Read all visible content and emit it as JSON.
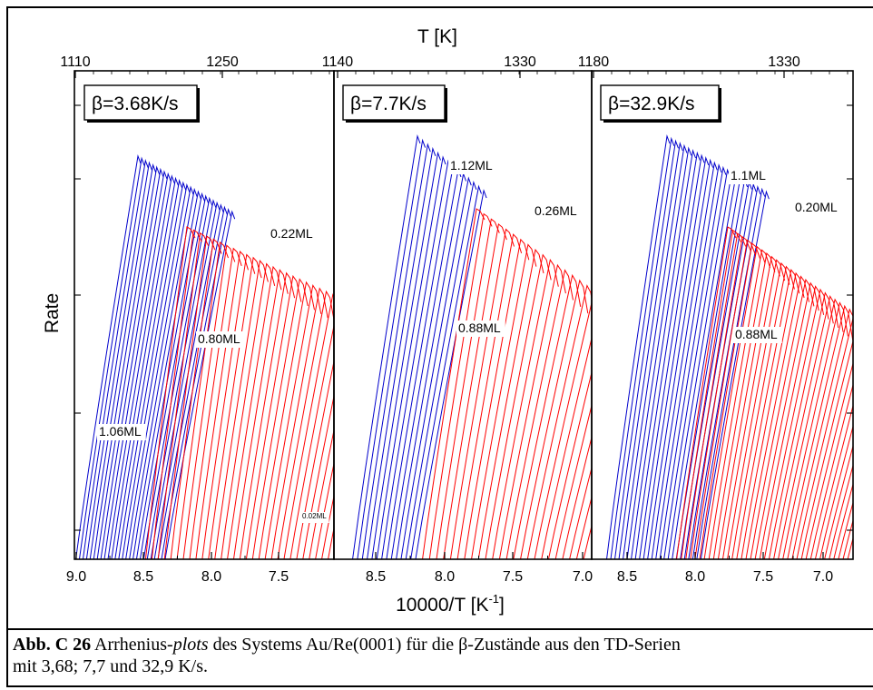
{
  "figure": {
    "top_axis_title": "T [K]",
    "bottom_axis_title": "10000/T [K",
    "bottom_axis_title_sup": "-1",
    "bottom_axis_title_end": "]",
    "y_axis_title": "Rate"
  },
  "caption": {
    "label": "Abb. C 26",
    "text_1": " Arrhenius-",
    "italic": "plots",
    "text_2": " des Systems Au/Re(0001) für die β-Zustände aus den TD-Serien",
    "text_3": "mit 3,68; 7,7 und 32,9 K/s."
  },
  "colors": {
    "low_coverage": "#ff0000",
    "high_coverage": "#0000cc"
  },
  "chart_data": [
    {
      "type": "line",
      "panel_label": "β=3.68K/s",
      "x_ticks_bottom": [
        "9.0",
        "8.5",
        "8.0",
        "7.5"
      ],
      "x_ticks_top": [
        "1110",
        "1250"
      ],
      "xlim": [
        9.0,
        7.1
      ],
      "y_ticks_labeled": false,
      "annotations": [
        "1.06ML",
        "0.80ML",
        "0.22ML",
        "0.02ML"
      ],
      "series": [
        {
          "color": "#0000cc",
          "coverage_range": [
            "1.06ML",
            "0.80ML"
          ]
        },
        {
          "color": "#ff0000",
          "coverage_range": [
            "0.80ML",
            "0.02ML"
          ]
        }
      ]
    },
    {
      "type": "line",
      "panel_label": "β=7.7K/s",
      "x_ticks_bottom": [
        "8.5",
        "8.0",
        "7.5",
        "7.0"
      ],
      "x_ticks_top": [
        "1140",
        "1330"
      ],
      "xlim": [
        8.9,
        6.9
      ],
      "y_ticks_labeled": false,
      "annotations": [
        "1.12ML",
        "0.88ML",
        "0.26ML"
      ],
      "series": [
        {
          "color": "#0000cc",
          "coverage_range": [
            "1.12ML",
            "0.88ML"
          ]
        },
        {
          "color": "#ff0000",
          "coverage_range": [
            "0.88ML",
            "0.26ML"
          ]
        }
      ]
    },
    {
      "type": "line",
      "panel_label": "β=32.9K/s",
      "x_ticks_bottom": [
        "8.5",
        "8.0",
        "7.5",
        "7.0"
      ],
      "x_ticks_top": [
        "1180",
        "1330"
      ],
      "xlim": [
        8.85,
        6.8
      ],
      "y_ticks_labeled": false,
      "annotations": [
        "1.1ML",
        "0.88ML",
        "0.20ML"
      ],
      "series": [
        {
          "color": "#0000cc",
          "coverage_range": [
            "1.1ML",
            "0.88ML"
          ]
        },
        {
          "color": "#ff0000",
          "coverage_range": [
            "0.88ML",
            "0.20ML"
          ]
        }
      ]
    }
  ]
}
